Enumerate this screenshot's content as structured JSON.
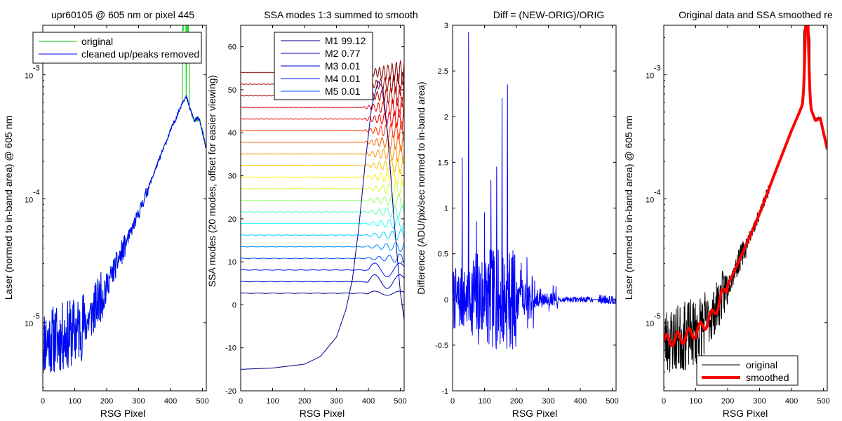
{
  "figure": {
    "panels": 4
  },
  "chart_data": [
    {
      "type": "line",
      "title": "upr60105 @ 605 nm or pixel 445",
      "xlabel": "RSG Pixel",
      "ylabel": "Laser (normed to in-band area) @ 605 nm",
      "xlim": [
        0,
        512
      ],
      "ylim_log10": [
        -5.55,
        -2.6
      ],
      "yscale": "log",
      "xticks": [
        0,
        100,
        200,
        300,
        400,
        500
      ],
      "yticks": [
        {
          "exp": -5,
          "label": "10",
          "sup": "-5"
        },
        {
          "exp": -4,
          "label": "10",
          "sup": "-4"
        },
        {
          "exp": -3,
          "label": "10",
          "sup": "-3"
        }
      ],
      "legend": {
        "position": "top",
        "entries": [
          "original",
          "cleaned up/peaks removed"
        ]
      },
      "series": [
        {
          "name": "original",
          "color": "#00cc00",
          "kind": "laser_orig"
        },
        {
          "name": "cleaned up/peaks removed",
          "color": "#0000ff",
          "kind": "laser_clean"
        }
      ]
    },
    {
      "type": "line",
      "title": "SSA modes 1:3 summed to smooth",
      "xlabel": "RSG Pixel",
      "ylabel": "SSA modes (20 modes, offset for easier viewing)",
      "xlim": [
        0,
        512
      ],
      "ylim": [
        -20,
        65
      ],
      "xticks": [
        0,
        100,
        200,
        300,
        400,
        500
      ],
      "yticks": [
        -20,
        -10,
        0,
        10,
        20,
        30,
        40,
        50,
        60
      ],
      "legend": {
        "position": "top",
        "entries": [
          "M1 99.12",
          "M2 0.77",
          "M3 0.01",
          "M4 0.01",
          "M5 0.01"
        ]
      },
      "legend_colors": [
        "#00008f",
        "#0000b0",
        "#0000cf",
        "#0010ff",
        "#0050ff"
      ],
      "mode_offsets": [
        2.7,
        5.4,
        8.1,
        10.8,
        13.5,
        16.2,
        18.9,
        21.6,
        24.3,
        27,
        29.7,
        32.4,
        35.1,
        37.8,
        40.5,
        43.2,
        45.9,
        48.6,
        51.3,
        54
      ],
      "mode_colors": [
        "#00008f",
        "#0000cc",
        "#0010ff",
        "#0050ff",
        "#0090ff",
        "#00d0ff",
        "#10fff0",
        "#50ffb0",
        "#90ff70",
        "#d0ff30",
        "#ffef00",
        "#ffc000",
        "#ff9000",
        "#ff6000",
        "#ff3000",
        "#ff0000",
        "#df0000",
        "#bf0000",
        "#a00000",
        "#800000"
      ],
      "m1_curve": {
        "x": [
          0,
          100,
          200,
          250,
          300,
          330,
          350,
          370,
          390,
          410,
          430,
          445,
          460,
          480,
          500,
          512
        ],
        "y": [
          -15,
          -14.7,
          -13.8,
          -12,
          -7.5,
          -1,
          6,
          18,
          33,
          46,
          52,
          50.5,
          40,
          20,
          3,
          -3.5
        ]
      }
    },
    {
      "type": "line",
      "title": "Diff = (NEW-ORIG)/ORIG",
      "xlabel": "RSG Pixel",
      "ylabel": "Difference (ADU/pix/sec normed to in-band area)",
      "xlim": [
        0,
        512
      ],
      "ylim": [
        -1,
        3
      ],
      "xticks": [
        0,
        100,
        200,
        300,
        400,
        500
      ],
      "yticks": [
        -1,
        -0.5,
        0,
        0.5,
        1,
        1.5,
        2,
        2.5,
        3
      ],
      "spikes": [
        {
          "x": 50,
          "y": 2.92
        },
        {
          "x": 172,
          "y": 2.35
        },
        {
          "x": 155,
          "y": 2.2
        },
        {
          "x": 30,
          "y": 1.55
        },
        {
          "x": 120,
          "y": 1.3
        },
        {
          "x": 138,
          "y": 1.45
        },
        {
          "x": 100,
          "y": 0.95
        },
        {
          "x": 75,
          "y": 0.85
        }
      ],
      "series": [
        {
          "name": "",
          "color": "#0000ff",
          "kind": "diff"
        }
      ]
    },
    {
      "type": "line",
      "title": "Original data and SSA smoothed re",
      "xlabel": "RSG Pixel",
      "ylabel": "Laser (normed to in-band area) @ 605 nm",
      "xlim": [
        0,
        512
      ],
      "ylim_log10": [
        -5.55,
        -2.6
      ],
      "yscale": "log",
      "xticks": [
        0,
        100,
        200,
        300,
        400,
        500
      ],
      "yticks": [
        {
          "exp": -5,
          "label": "10",
          "sup": "-5"
        },
        {
          "exp": -4,
          "label": "10",
          "sup": "-4"
        },
        {
          "exp": -3,
          "label": "10",
          "sup": "-3"
        }
      ],
      "legend": {
        "position": "bottom",
        "entries": [
          "original",
          "smoothed"
        ]
      },
      "series": [
        {
          "name": "original",
          "color": "#000000",
          "kind": "laser_orig"
        },
        {
          "name": "smoothed",
          "color": "#ff0000",
          "kind": "laser_smooth"
        }
      ]
    }
  ]
}
